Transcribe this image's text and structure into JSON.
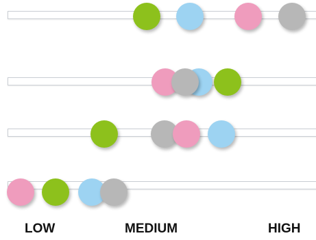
{
  "scale_labels": {
    "low": "LOW",
    "medium": "MEDIUM",
    "high": "HIGH"
  },
  "colors": {
    "pink": "#ef9cbd",
    "gray": "#b7b7b7",
    "blue": "#9dd3f2",
    "green": "#8dc11c",
    "track_border": "#c9cdd3"
  },
  "rows": [
    {
      "markers": [
        {
          "series": "green",
          "level": 0.465
        },
        {
          "series": "blue",
          "level": 0.6
        },
        {
          "series": "pink",
          "level": 0.785
        },
        {
          "series": "gray",
          "level": 0.925
        }
      ]
    },
    {
      "markers": [
        {
          "series": "pink",
          "level": 0.522
        },
        {
          "series": "blue",
          "level": 0.63
        },
        {
          "series": "gray",
          "level": 0.585
        },
        {
          "series": "green",
          "level": 0.72
        }
      ]
    },
    {
      "markers": [
        {
          "series": "green",
          "level": 0.33
        },
        {
          "series": "gray",
          "level": 0.52
        },
        {
          "series": "pink",
          "level": 0.59
        },
        {
          "series": "blue",
          "level": 0.7
        }
      ]
    },
    {
      "markers": [
        {
          "series": "pink",
          "level": 0.065
        },
        {
          "series": "green",
          "level": 0.175
        },
        {
          "series": "blue",
          "level": 0.29
        },
        {
          "series": "gray",
          "level": 0.36
        }
      ]
    }
  ]
}
